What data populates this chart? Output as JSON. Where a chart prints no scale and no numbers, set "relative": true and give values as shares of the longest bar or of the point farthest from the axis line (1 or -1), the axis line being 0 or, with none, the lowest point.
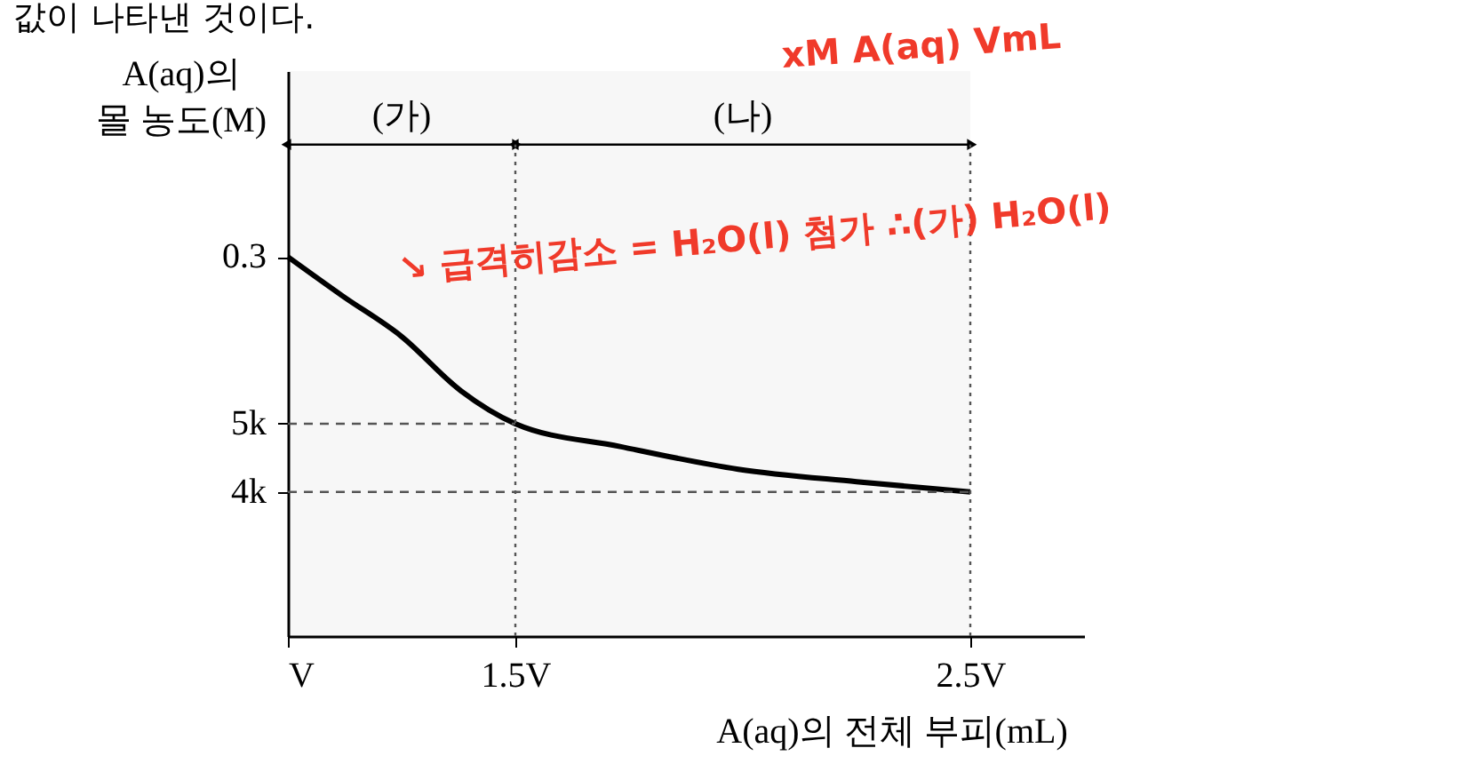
{
  "chart_data": {
    "type": "line",
    "relative": true,
    "xlabel": "A(aq)의 전체 부피(mL)",
    "ylabel": "A(aq)의 몰 농도(M)",
    "x": [
      1,
      1.12,
      1.25,
      1.38,
      1.5,
      1.73,
      1.99,
      2.25,
      2.5
    ],
    "series": [
      {
        "color": "#000000",
        "values": [
          1,
          0.897,
          0.79,
          0.647,
          0.56,
          0.5,
          0.44,
          0.407,
          0.38
        ]
      }
    ],
    "xlim": [
      1,
      2.75
    ],
    "xticks": [
      {
        "value": 1,
        "label": "V"
      },
      {
        "value": 1.5,
        "label": "1.5V"
      },
      {
        "value": 2.5,
        "label": "2.5V"
      }
    ],
    "ref_lines": [
      {
        "axis": "x",
        "value": 1.5,
        "line_style": "dotted",
        "color": "#555555"
      },
      {
        "axis": "x",
        "value": 2.5,
        "line_style": "dotted",
        "color": "#555555"
      },
      {
        "axis": "y",
        "value": 0.56,
        "label": "5k",
        "line_style": "dashed",
        "color": "#555555"
      },
      {
        "axis": "y",
        "value": 0.38,
        "label": "4k",
        "line_style": "dashed",
        "color": "#555555"
      }
    ],
    "bands": [
      {
        "axis": "x",
        "from": 1,
        "to": 1.5,
        "label": "(가)",
        "color": "#000000"
      },
      {
        "axis": "x",
        "from": 1.5,
        "to": 2.5,
        "label": "(나)",
        "color": "#000000"
      }
    ],
    "annotations": [
      {
        "text": "0.3",
        "x": 1,
        "y": 1
      },
      "값이 나타낸 것이다.",
      "xM A(aq) VmL",
      "↘ 급격히감소 = H₂O(l) 첨가 ∴(가) H₂O(l)"
    ],
    "grid": false,
    "marker": "none",
    "line_style": "solid"
  }
}
